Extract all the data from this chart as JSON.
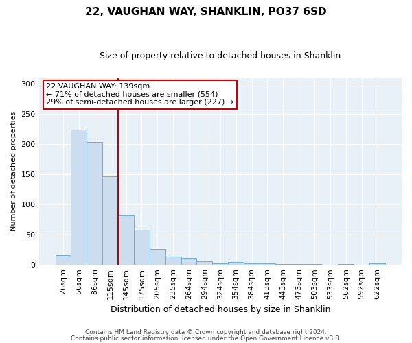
{
  "title": "22, VAUGHAN WAY, SHANKLIN, PO37 6SD",
  "subtitle": "Size of property relative to detached houses in Shanklin",
  "xlabel": "Distribution of detached houses by size in Shanklin",
  "ylabel": "Number of detached properties",
  "bar_labels": [
    "26sqm",
    "56sqm",
    "86sqm",
    "115sqm",
    "145sqm",
    "175sqm",
    "205sqm",
    "235sqm",
    "264sqm",
    "294sqm",
    "324sqm",
    "354sqm",
    "384sqm",
    "413sqm",
    "443sqm",
    "473sqm",
    "503sqm",
    "533sqm",
    "562sqm",
    "592sqm",
    "622sqm"
  ],
  "bar_values": [
    16,
    224,
    203,
    146,
    82,
    58,
    26,
    14,
    11,
    6,
    3,
    5,
    2,
    3,
    1,
    1,
    1,
    0,
    1,
    0,
    2
  ],
  "bar_color": "#ccddf0",
  "bar_edge_color": "#6aaee0",
  "vline_color": "#c00000",
  "ylim": [
    0,
    310
  ],
  "yticks": [
    0,
    50,
    100,
    150,
    200,
    250,
    300
  ],
  "annotation_title": "22 VAUGHAN WAY: 139sqm",
  "annotation_line1": "← 71% of detached houses are smaller (554)",
  "annotation_line2": "29% of semi-detached houses are larger (227) →",
  "annotation_box_color": "#ffffff",
  "annotation_border_color": "#cc0000",
  "footer1": "Contains HM Land Registry data © Crown copyright and database right 2024.",
  "footer2": "Contains public sector information licensed under the Open Government Licence v3.0.",
  "figure_bg_color": "#ffffff",
  "plot_bg_color": "#e8f0f8",
  "grid_color": "#ffffff",
  "title_fontsize": 11,
  "subtitle_fontsize": 9,
  "ylabel_fontsize": 8,
  "xlabel_fontsize": 9,
  "tick_fontsize": 8,
  "footer_fontsize": 6.5
}
